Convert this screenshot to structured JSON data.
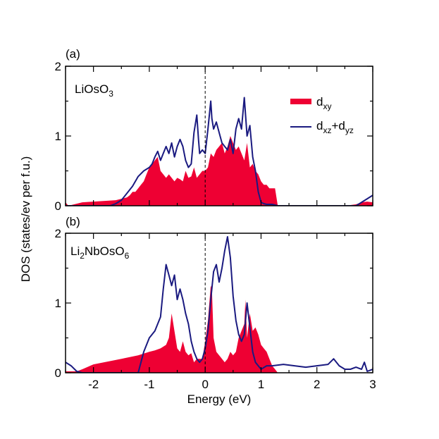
{
  "chart_data": {
    "type": "area",
    "xlabel": "Energy (eV)",
    "ylabel": "DOS (states/ev per f.u.)",
    "xlim": [
      -2.5,
      3
    ],
    "x_ticks": [
      "-2",
      "-1",
      "0",
      "1",
      "2",
      "3"
    ],
    "fermi_level": 0,
    "legend": {
      "placement": "top-right of panel (a)",
      "entries": [
        {
          "series": "dxy",
          "base": "d",
          "sub": "xy",
          "color": "#ee0033",
          "style": "filled area"
        },
        {
          "series": "dxz+dyz",
          "base1": "d",
          "sub1": "xz",
          "plus": "+",
          "base2": "d",
          "sub2": "yz",
          "color": "#1a1a80",
          "style": "line"
        }
      ]
    },
    "panels": [
      {
        "tag": "(a)",
        "material": {
          "p1": "LiOsO",
          "s1": "3"
        },
        "ylim": [
          0,
          2
        ],
        "y_ticks": [
          "0",
          "1",
          "2"
        ],
        "series": [
          {
            "name": "dxy",
            "x": [
              -2.5,
              -2.45,
              -2.2,
              -2.0,
              -1.8,
              -1.6,
              -1.4,
              -1.35,
              -1.3,
              -1.25,
              -1.2,
              -1.15,
              -1.1,
              -1.05,
              -1.0,
              -0.95,
              -0.9,
              -0.85,
              -0.8,
              -0.75,
              -0.7,
              -0.65,
              -0.6,
              -0.55,
              -0.5,
              -0.45,
              -0.4,
              -0.35,
              -0.3,
              -0.25,
              -0.2,
              -0.15,
              -0.1,
              -0.05,
              0.0,
              0.05,
              0.1,
              0.15,
              0.2,
              0.25,
              0.3,
              0.35,
              0.4,
              0.45,
              0.5,
              0.55,
              0.6,
              0.65,
              0.7,
              0.75,
              0.8,
              0.85,
              0.9,
              0.95,
              1.0,
              1.05,
              1.1,
              1.15,
              1.2,
              1.25,
              1.3,
              1.5,
              2.0,
              2.5,
              2.7,
              2.8,
              2.9,
              3.0
            ],
            "y": [
              0.05,
              0.0,
              0.05,
              0.06,
              0.07,
              0.08,
              0.12,
              0.15,
              0.2,
              0.2,
              0.25,
              0.3,
              0.35,
              0.45,
              0.55,
              0.6,
              0.65,
              0.7,
              0.5,
              0.45,
              0.4,
              0.45,
              0.4,
              0.35,
              0.4,
              0.38,
              0.35,
              0.5,
              0.4,
              0.42,
              0.55,
              0.4,
              0.45,
              0.5,
              0.5,
              0.55,
              0.75,
              0.7,
              0.8,
              0.85,
              0.9,
              0.75,
              0.85,
              1.0,
              0.9,
              0.8,
              0.85,
              0.75,
              0.65,
              0.9,
              0.55,
              0.6,
              0.5,
              0.45,
              0.35,
              0.3,
              0.3,
              0.25,
              0.25,
              0.25,
              0.0,
              0.0,
              0.0,
              0.0,
              0.02,
              0.05,
              0.06,
              0.05
            ]
          },
          {
            "name": "dxz+dyz",
            "x": [
              -2.5,
              -2.0,
              -1.7,
              -1.6,
              -1.5,
              -1.4,
              -1.3,
              -1.2,
              -1.1,
              -1.0,
              -0.95,
              -0.9,
              -0.85,
              -0.8,
              -0.75,
              -0.7,
              -0.65,
              -0.6,
              -0.55,
              -0.5,
              -0.45,
              -0.4,
              -0.35,
              -0.3,
              -0.25,
              -0.2,
              -0.15,
              -0.12,
              -0.1,
              -0.05,
              0.0,
              0.05,
              0.1,
              0.12,
              0.15,
              0.2,
              0.25,
              0.3,
              0.35,
              0.4,
              0.45,
              0.5,
              0.55,
              0.6,
              0.65,
              0.7,
              0.75,
              0.8,
              0.85,
              0.9,
              0.95,
              1.0,
              1.05,
              1.1,
              1.15,
              1.2,
              1.3,
              1.5,
              2.0,
              2.5,
              2.7,
              2.8,
              2.9,
              3.0
            ],
            "y": [
              0.0,
              0.0,
              0.0,
              0.03,
              0.08,
              0.18,
              0.28,
              0.42,
              0.5,
              0.55,
              0.6,
              0.7,
              0.78,
              0.65,
              0.75,
              0.85,
              0.75,
              0.9,
              0.7,
              0.85,
              0.95,
              0.85,
              0.65,
              0.55,
              0.6,
              1.05,
              1.3,
              0.95,
              0.75,
              0.8,
              0.75,
              1.1,
              1.5,
              1.25,
              1.1,
              1.2,
              1.05,
              0.9,
              0.85,
              0.8,
              0.95,
              0.75,
              1.1,
              1.25,
              1.1,
              1.55,
              1.0,
              1.15,
              0.7,
              0.5,
              0.2,
              0.05,
              0.03,
              0.02,
              0.02,
              0.02,
              0.0,
              0.0,
              0.0,
              0.0,
              0.0,
              0.05,
              0.1,
              0.15
            ]
          }
        ]
      },
      {
        "tag": "(b)",
        "material": {
          "p1": "Li",
          "s1": "2",
          "p2": "NbOsO",
          "s2": "6"
        },
        "ylim": [
          0,
          2
        ],
        "y_ticks": [
          "0",
          "1",
          "2"
        ],
        "series": [
          {
            "name": "dxy",
            "x": [
              -2.5,
              -2.3,
              -2.2,
              -2.0,
              -1.5,
              -1.2,
              -1.0,
              -0.9,
              -0.8,
              -0.7,
              -0.65,
              -0.6,
              -0.5,
              -0.45,
              -0.4,
              -0.35,
              -0.3,
              -0.25,
              -0.2,
              -0.15,
              -0.1,
              -0.05,
              0.0,
              0.05,
              0.1,
              0.12,
              0.15,
              0.2,
              0.25,
              0.3,
              0.35,
              0.4,
              0.45,
              0.5,
              0.55,
              0.6,
              0.65,
              0.7,
              0.72,
              0.75,
              0.8,
              0.85,
              0.9,
              0.95,
              1.0,
              1.05,
              1.1,
              1.15,
              1.2,
              1.25,
              1.3,
              1.5,
              2.0,
              2.5,
              3.0
            ],
            "y": [
              0.02,
              0.02,
              0.05,
              0.12,
              0.2,
              0.25,
              0.3,
              0.32,
              0.35,
              0.4,
              0.5,
              0.85,
              0.35,
              0.3,
              0.45,
              0.3,
              0.25,
              0.28,
              0.15,
              0.2,
              0.2,
              0.2,
              0.45,
              0.75,
              1.25,
              1.2,
              0.5,
              0.3,
              0.25,
              0.2,
              0.15,
              0.2,
              0.3,
              0.25,
              0.3,
              0.5,
              0.6,
              0.7,
              1.05,
              0.5,
              0.85,
              0.6,
              0.65,
              0.55,
              0.4,
              0.35,
              0.3,
              0.2,
              0.1,
              0.05,
              0.0,
              0.0,
              0.0,
              0.0,
              0.0
            ]
          },
          {
            "name": "dxz+dyz",
            "x": [
              -2.5,
              -2.4,
              -2.3,
              -2.2,
              -1.2,
              -1.1,
              -1.0,
              -0.9,
              -0.8,
              -0.75,
              -0.7,
              -0.65,
              -0.6,
              -0.55,
              -0.5,
              -0.45,
              -0.4,
              -0.35,
              -0.3,
              -0.25,
              -0.2,
              -0.15,
              -0.1,
              -0.05,
              0.0,
              0.05,
              0.1,
              0.15,
              0.2,
              0.25,
              0.3,
              0.35,
              0.4,
              0.45,
              0.5,
              0.55,
              0.6,
              0.65,
              0.7,
              0.75,
              0.8,
              0.85,
              0.9,
              0.95,
              1.0,
              1.1,
              1.2,
              1.4,
              1.6,
              1.8,
              2.0,
              2.2,
              2.3,
              2.4,
              2.5,
              2.6,
              2.7,
              2.8,
              2.85,
              2.9,
              3.0
            ],
            "y": [
              0.15,
              0.1,
              0.02,
              0.0,
              0.0,
              0.3,
              0.5,
              0.6,
              0.8,
              1.2,
              1.55,
              1.4,
              1.25,
              1.4,
              1.05,
              1.2,
              1.05,
              0.85,
              0.7,
              0.45,
              0.3,
              0.2,
              0.15,
              0.2,
              0.35,
              0.6,
              1.05,
              1.45,
              1.55,
              1.3,
              1.5,
              1.75,
              1.95,
              1.65,
              1.1,
              0.75,
              0.55,
              0.45,
              0.55,
              1.0,
              0.65,
              0.3,
              0.15,
              0.1,
              0.05,
              0.1,
              0.1,
              0.12,
              0.1,
              0.08,
              0.1,
              0.12,
              0.2,
              0.1,
              0.05,
              0.05,
              0.08,
              0.05,
              0.15,
              0.02,
              0.05
            ]
          }
        ]
      }
    ]
  }
}
